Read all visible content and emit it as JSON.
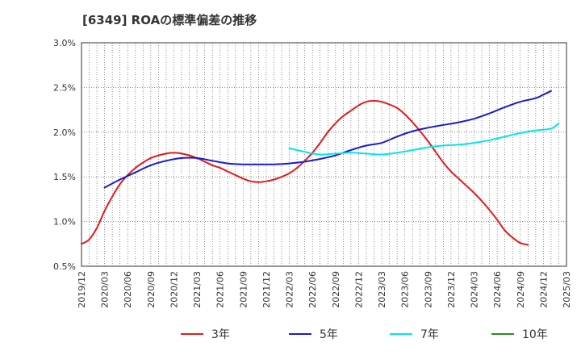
{
  "chart_data": {
    "type": "line",
    "title": "[6349]  ROAの標準偏差の推移",
    "ylim": [
      0.5,
      3.0
    ],
    "y_ticks": [
      0.5,
      1.0,
      1.5,
      2.0,
      2.5,
      3.0
    ],
    "y_tick_labels": [
      "0.5%",
      "1.0%",
      "1.5%",
      "2.0%",
      "2.5%",
      "3.0%"
    ],
    "x_range": [
      "2019/12",
      "2025/03"
    ],
    "x_tick_labels": [
      "2019/12",
      "2020/03",
      "2020/06",
      "2020/09",
      "2020/12",
      "2021/03",
      "2021/06",
      "2021/09",
      "2021/12",
      "2022/03",
      "2022/06",
      "2022/09",
      "2022/12",
      "2023/03",
      "2023/06",
      "2023/09",
      "2023/12",
      "2024/03",
      "2024/06",
      "2024/09",
      "2024/12",
      "2025/03"
    ],
    "grid": true,
    "legend_position": "bottom",
    "series": [
      {
        "name": "3年",
        "color": "#e31a1c",
        "points": [
          [
            "2019/12",
            0.75
          ],
          [
            "2020/01",
            0.8
          ],
          [
            "2020/02",
            0.93
          ],
          [
            "2020/03",
            1.12
          ],
          [
            "2020/04",
            1.28
          ],
          [
            "2020/05",
            1.42
          ],
          [
            "2020/06",
            1.52
          ],
          [
            "2020/07",
            1.6
          ],
          [
            "2020/08",
            1.66
          ],
          [
            "2020/09",
            1.71
          ],
          [
            "2020/10",
            1.74
          ],
          [
            "2020/11",
            1.76
          ],
          [
            "2020/12",
            1.77
          ],
          [
            "2021/01",
            1.76
          ],
          [
            "2021/02",
            1.74
          ],
          [
            "2021/03",
            1.71
          ],
          [
            "2021/04",
            1.67
          ],
          [
            "2021/05",
            1.63
          ],
          [
            "2021/06",
            1.6
          ],
          [
            "2021/07",
            1.56
          ],
          [
            "2021/08",
            1.52
          ],
          [
            "2021/09",
            1.48
          ],
          [
            "2021/10",
            1.45
          ],
          [
            "2021/11",
            1.44
          ],
          [
            "2021/12",
            1.45
          ],
          [
            "2022/01",
            1.47
          ],
          [
            "2022/02",
            1.5
          ],
          [
            "2022/03",
            1.54
          ],
          [
            "2022/04",
            1.6
          ],
          [
            "2022/05",
            1.68
          ],
          [
            "2022/06",
            1.77
          ],
          [
            "2022/07",
            1.88
          ],
          [
            "2022/08",
            2.0
          ],
          [
            "2022/09",
            2.1
          ],
          [
            "2022/10",
            2.18
          ],
          [
            "2022/11",
            2.24
          ],
          [
            "2022/12",
            2.3
          ],
          [
            "2023/01",
            2.34
          ],
          [
            "2023/02",
            2.35
          ],
          [
            "2023/03",
            2.34
          ],
          [
            "2023/04",
            2.31
          ],
          [
            "2023/05",
            2.27
          ],
          [
            "2023/06",
            2.2
          ],
          [
            "2023/07",
            2.11
          ],
          [
            "2023/08",
            2.01
          ],
          [
            "2023/09",
            1.9
          ],
          [
            "2023/10",
            1.78
          ],
          [
            "2023/11",
            1.66
          ],
          [
            "2023/12",
            1.56
          ],
          [
            "2024/01",
            1.48
          ],
          [
            "2024/02",
            1.4
          ],
          [
            "2024/03",
            1.32
          ],
          [
            "2024/04",
            1.23
          ],
          [
            "2024/05",
            1.13
          ],
          [
            "2024/06",
            1.02
          ],
          [
            "2024/07",
            0.9
          ],
          [
            "2024/08",
            0.82
          ],
          [
            "2024/09",
            0.76
          ],
          [
            "2024/10",
            0.74
          ]
        ]
      },
      {
        "name": "5年",
        "color": "#1a1acd",
        "points": [
          [
            "2020/03",
            1.38
          ],
          [
            "2020/05",
            1.47
          ],
          [
            "2020/07",
            1.55
          ],
          [
            "2020/09",
            1.63
          ],
          [
            "2020/11",
            1.68
          ],
          [
            "2021/01",
            1.71
          ],
          [
            "2021/03",
            1.71
          ],
          [
            "2021/05",
            1.68
          ],
          [
            "2021/07",
            1.65
          ],
          [
            "2021/09",
            1.64
          ],
          [
            "2021/11",
            1.64
          ],
          [
            "2022/01",
            1.64
          ],
          [
            "2022/03",
            1.65
          ],
          [
            "2022/05",
            1.67
          ],
          [
            "2022/07",
            1.7
          ],
          [
            "2022/09",
            1.74
          ],
          [
            "2022/11",
            1.8
          ],
          [
            "2023/01",
            1.85
          ],
          [
            "2023/03",
            1.88
          ],
          [
            "2023/05",
            1.95
          ],
          [
            "2023/07",
            2.01
          ],
          [
            "2023/09",
            2.05
          ],
          [
            "2023/11",
            2.08
          ],
          [
            "2024/01",
            2.11
          ],
          [
            "2024/03",
            2.15
          ],
          [
            "2024/05",
            2.21
          ],
          [
            "2024/07",
            2.28
          ],
          [
            "2024/09",
            2.34
          ],
          [
            "2024/11",
            2.38
          ],
          [
            "2024/12",
            2.42
          ],
          [
            "2025/01",
            2.46
          ]
        ]
      },
      {
        "name": "7年",
        "color": "#00e5ee",
        "points": [
          [
            "2022/03",
            1.82
          ],
          [
            "2022/05",
            1.78
          ],
          [
            "2022/07",
            1.75
          ],
          [
            "2022/09",
            1.76
          ],
          [
            "2022/11",
            1.77
          ],
          [
            "2023/01",
            1.76
          ],
          [
            "2023/03",
            1.75
          ],
          [
            "2023/05",
            1.77
          ],
          [
            "2023/07",
            1.8
          ],
          [
            "2023/09",
            1.83
          ],
          [
            "2023/11",
            1.85
          ],
          [
            "2024/01",
            1.86
          ],
          [
            "2024/03",
            1.88
          ],
          [
            "2024/05",
            1.91
          ],
          [
            "2024/07",
            1.95
          ],
          [
            "2024/09",
            1.99
          ],
          [
            "2024/11",
            2.02
          ],
          [
            "2025/01",
            2.04
          ],
          [
            "2025/02",
            2.1
          ]
        ]
      },
      {
        "name": "10年",
        "color": "#2e8b22",
        "points": []
      }
    ]
  }
}
